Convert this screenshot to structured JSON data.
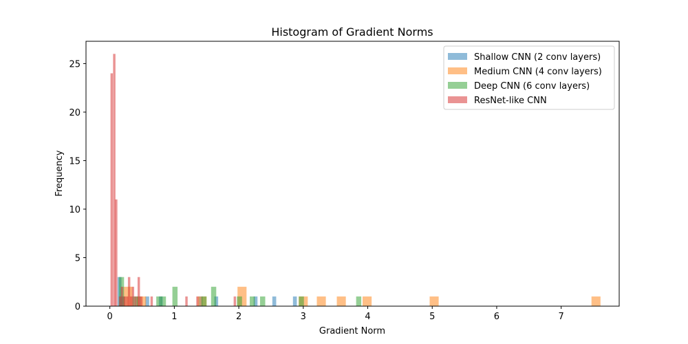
{
  "chart_data": {
    "type": "histogram",
    "title": "Histogram of Gradient Norms",
    "xlabel": "Gradient Norm",
    "ylabel": "Frequency",
    "xlim": [
      -0.37,
      7.9
    ],
    "ylim": [
      0,
      27.3
    ],
    "xticks": [
      0,
      1,
      2,
      3,
      4,
      5,
      6,
      7
    ],
    "yticks": [
      0,
      5,
      10,
      15,
      20,
      25
    ],
    "grid": false,
    "legend_position": "top-right",
    "bar_opacity": 0.5,
    "series": [
      {
        "name": "Shallow CNN (2 conv layers)",
        "color": "#1f77b4",
        "bin_width": 0.06,
        "bins": [
          {
            "x": 0.12,
            "count": 3
          },
          {
            "x": 0.18,
            "count": 1
          },
          {
            "x": 0.42,
            "count": 1
          },
          {
            "x": 0.55,
            "count": 1
          },
          {
            "x": 0.76,
            "count": 1
          },
          {
            "x": 1.38,
            "count": 1
          },
          {
            "x": 1.62,
            "count": 1
          },
          {
            "x": 2.23,
            "count": 1
          },
          {
            "x": 2.52,
            "count": 1
          },
          {
            "x": 2.84,
            "count": 1
          }
        ]
      },
      {
        "name": "Medium CNN (4 conv layers)",
        "color": "#ff7f0e",
        "bin_width": 0.14,
        "bins": [
          {
            "x": 0.21,
            "count": 2
          },
          {
            "x": 0.42,
            "count": 1
          },
          {
            "x": 1.36,
            "count": 1
          },
          {
            "x": 1.98,
            "count": 2
          },
          {
            "x": 2.93,
            "count": 1
          },
          {
            "x": 3.21,
            "count": 1
          },
          {
            "x": 3.52,
            "count": 1
          },
          {
            "x": 3.92,
            "count": 1
          },
          {
            "x": 4.96,
            "count": 1
          },
          {
            "x": 7.47,
            "count": 1
          }
        ]
      },
      {
        "name": "Deep CNN (6 conv layers)",
        "color": "#2ca02c",
        "bin_width": 0.08,
        "bins": [
          {
            "x": 0.14,
            "count": 3
          },
          {
            "x": 0.35,
            "count": 1
          },
          {
            "x": 0.72,
            "count": 1
          },
          {
            "x": 0.79,
            "count": 1
          },
          {
            "x": 0.97,
            "count": 2
          },
          {
            "x": 1.42,
            "count": 1
          },
          {
            "x": 1.57,
            "count": 2
          },
          {
            "x": 1.97,
            "count": 1
          },
          {
            "x": 2.17,
            "count": 1
          },
          {
            "x": 2.33,
            "count": 1
          },
          {
            "x": 2.93,
            "count": 1
          },
          {
            "x": 3.82,
            "count": 1
          }
        ]
      },
      {
        "name": "ResNet-like CNN",
        "color": "#d62728",
        "bin_width": 0.037,
        "bins": [
          {
            "x": 0.01,
            "count": 24
          },
          {
            "x": 0.05,
            "count": 26
          },
          {
            "x": 0.08,
            "count": 11
          },
          {
            "x": 0.14,
            "count": 1
          },
          {
            "x": 0.17,
            "count": 2
          },
          {
            "x": 0.21,
            "count": 1
          },
          {
            "x": 0.25,
            "count": 1
          },
          {
            "x": 0.28,
            "count": 3
          },
          {
            "x": 0.31,
            "count": 1
          },
          {
            "x": 0.34,
            "count": 2
          },
          {
            "x": 0.38,
            "count": 1
          },
          {
            "x": 0.43,
            "count": 3
          },
          {
            "x": 0.47,
            "count": 1
          },
          {
            "x": 0.63,
            "count": 1
          },
          {
            "x": 1.17,
            "count": 1
          },
          {
            "x": 1.34,
            "count": 1
          },
          {
            "x": 1.92,
            "count": 1
          }
        ]
      }
    ]
  }
}
